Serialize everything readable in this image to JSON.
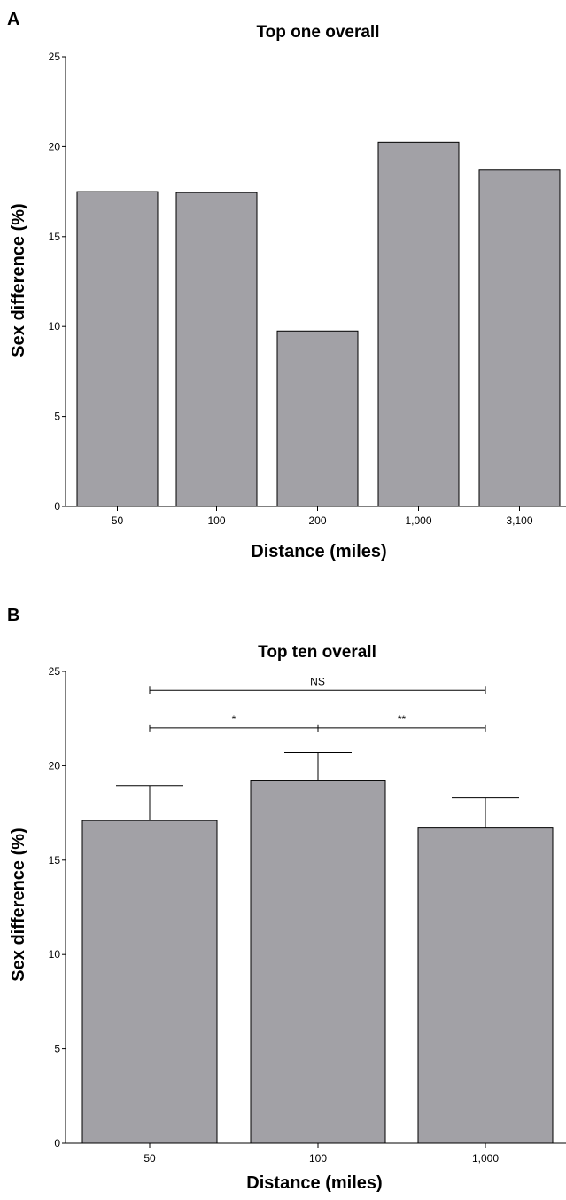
{
  "chart_data": [
    {
      "type": "bar",
      "panel": "A",
      "title": "Top one overall",
      "xlabel": "Distance (miles)",
      "ylabel": "Sex difference (%)",
      "categories": [
        "50",
        "100",
        "200",
        "1,000",
        "3,100"
      ],
      "values": [
        17.5,
        17.45,
        9.75,
        20.25,
        18.7
      ],
      "ylim": [
        0,
        25
      ],
      "yticks": [
        "0",
        "5",
        "10",
        "15",
        "20",
        "25"
      ],
      "bar_color": "#a2a1a6",
      "grid": false
    },
    {
      "type": "bar",
      "panel": "B",
      "title": "Top ten overall",
      "xlabel": "Distance (miles)",
      "ylabel": "Sex difference (%)",
      "categories": [
        "50",
        "100",
        "1,000"
      ],
      "values": [
        17.1,
        19.2,
        16.7
      ],
      "errors": [
        1.85,
        1.5,
        1.6
      ],
      "ylim": [
        0,
        25
      ],
      "yticks": [
        "0",
        "5",
        "10",
        "15",
        "20",
        "25"
      ],
      "bar_color": "#a2a1a6",
      "grid": false,
      "significance": [
        {
          "from": 0,
          "to": 2,
          "label": "NS",
          "y": 24
        },
        {
          "from": 0,
          "to": 1,
          "label": "*",
          "y": 22
        },
        {
          "from": 1,
          "to": 2,
          "label": "**",
          "y": 22
        }
      ]
    }
  ]
}
